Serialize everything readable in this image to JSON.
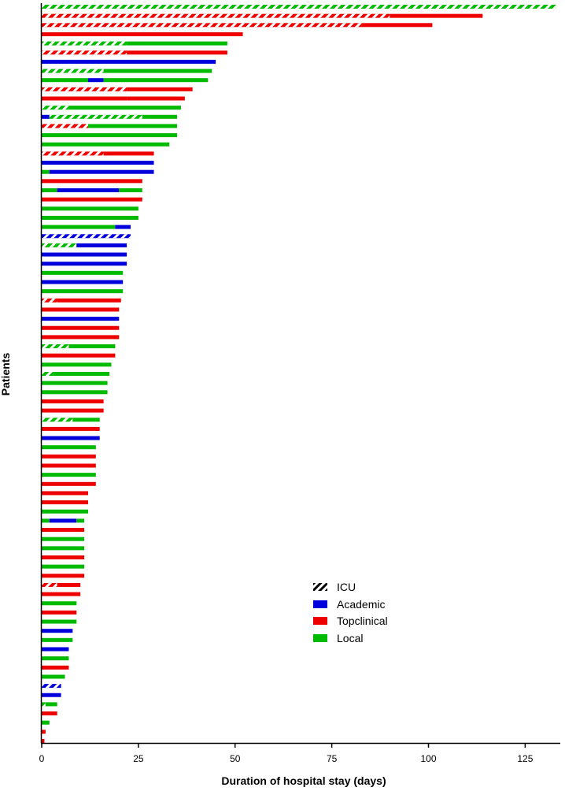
{
  "chart_data": {
    "type": "bar",
    "orientation": "horizontal",
    "xlabel": "Duration of hospital stay (days)",
    "ylabel": "Patients",
    "xlim": [
      0,
      135
    ],
    "xticks": [
      "0",
      "25",
      "50",
      "75",
      "100",
      "125"
    ],
    "legend": {
      "placement": "bottom-right",
      "entries": [
        {
          "key": "icu",
          "label": "ICU"
        },
        {
          "key": "academic",
          "label": "Academic"
        },
        {
          "key": "topclinical",
          "label": "Topclinical"
        },
        {
          "key": "local",
          "label": "Local"
        }
      ]
    },
    "colors": {
      "academic": "#0000dd",
      "topclinical": "#ee0000",
      "local": "#00bb00",
      "axis": "#000000"
    },
    "patients": [
      [
        [
          "L",
          0,
          133,
          1
        ]
      ],
      [
        [
          "T",
          0,
          90,
          1
        ],
        [
          "T",
          90,
          114,
          0
        ]
      ],
      [
        [
          "T",
          0,
          83,
          1
        ],
        [
          "T",
          83,
          101,
          0
        ]
      ],
      [
        [
          "T",
          0,
          52,
          0
        ]
      ],
      [
        [
          "L",
          0,
          22,
          1
        ],
        [
          "L",
          22,
          48,
          0
        ]
      ],
      [
        [
          "T",
          0,
          22,
          1
        ],
        [
          "T",
          22,
          48,
          0
        ]
      ],
      [
        [
          "A",
          0,
          45,
          0
        ]
      ],
      [
        [
          "L",
          0,
          16,
          1
        ],
        [
          "L",
          16,
          44,
          0
        ]
      ],
      [
        [
          "L",
          0,
          12,
          0
        ],
        [
          "A",
          12,
          16,
          0
        ],
        [
          "L",
          16,
          43,
          0
        ]
      ],
      [
        [
          "T",
          0,
          22,
          1
        ],
        [
          "T",
          22,
          39,
          0
        ]
      ],
      [
        [
          "T",
          0,
          22,
          0
        ],
        [
          "T",
          22,
          37,
          0
        ]
      ],
      [
        [
          "L",
          0,
          7,
          1
        ],
        [
          "L",
          7,
          36,
          0
        ]
      ],
      [
        [
          "A",
          0,
          2,
          0
        ],
        [
          "L",
          2,
          26,
          1
        ],
        [
          "L",
          26,
          35,
          0
        ]
      ],
      [
        [
          "T",
          0,
          12,
          1
        ],
        [
          "L",
          12,
          35,
          0
        ]
      ],
      [
        [
          "L",
          0,
          35,
          0
        ]
      ],
      [
        [
          "L",
          0,
          33,
          0
        ]
      ],
      [
        [
          "T",
          0,
          16,
          1
        ],
        [
          "T",
          16,
          29,
          0
        ]
      ],
      [
        [
          "A",
          0,
          29,
          0
        ]
      ],
      [
        [
          "L",
          0,
          2,
          0
        ],
        [
          "A",
          2,
          29,
          0
        ]
      ],
      [
        [
          "T",
          0,
          26,
          0
        ]
      ],
      [
        [
          "L",
          0,
          4,
          0
        ],
        [
          "A",
          4,
          20,
          0
        ],
        [
          "L",
          20,
          26,
          0
        ]
      ],
      [
        [
          "T",
          0,
          26,
          0
        ]
      ],
      [
        [
          "L",
          0,
          25,
          0
        ]
      ],
      [
        [
          "L",
          0,
          25,
          0
        ]
      ],
      [
        [
          "L",
          0,
          19,
          0
        ],
        [
          "A",
          19,
          23,
          0
        ]
      ],
      [
        [
          "A",
          0,
          23,
          1
        ]
      ],
      [
        [
          "L",
          0,
          9,
          1
        ],
        [
          "A",
          9,
          22,
          0
        ]
      ],
      [
        [
          "A",
          0,
          22,
          0
        ]
      ],
      [
        [
          "A",
          0,
          22,
          0
        ]
      ],
      [
        [
          "L",
          0,
          21,
          0
        ]
      ],
      [
        [
          "A",
          0,
          21,
          0
        ]
      ],
      [
        [
          "L",
          0,
          21,
          0
        ]
      ],
      [
        [
          "T",
          0,
          4,
          1
        ],
        [
          "T",
          4,
          20.5,
          0
        ]
      ],
      [
        [
          "T",
          0,
          20,
          0
        ]
      ],
      [
        [
          "A",
          0,
          20,
          0
        ]
      ],
      [
        [
          "T",
          0,
          20,
          0
        ]
      ],
      [
        [
          "T",
          0,
          20,
          0
        ]
      ],
      [
        [
          "L",
          0,
          7,
          1
        ],
        [
          "L",
          7,
          19,
          0
        ]
      ],
      [
        [
          "T",
          0,
          19,
          0
        ]
      ],
      [
        [
          "L",
          0,
          18,
          0
        ]
      ],
      [
        [
          "L",
          0,
          3,
          1
        ],
        [
          "L",
          3,
          17.5,
          0
        ]
      ],
      [
        [
          "L",
          0,
          17,
          0
        ]
      ],
      [
        [
          "L",
          0,
          17,
          0
        ]
      ],
      [
        [
          "T",
          0,
          16,
          0
        ]
      ],
      [
        [
          "T",
          0,
          16,
          0
        ]
      ],
      [
        [
          "L",
          0,
          8,
          1
        ],
        [
          "L",
          8,
          15,
          0
        ]
      ],
      [
        [
          "T",
          0,
          15,
          0
        ]
      ],
      [
        [
          "A",
          0,
          15,
          0
        ]
      ],
      [
        [
          "L",
          0,
          14,
          0
        ]
      ],
      [
        [
          "T",
          0,
          14,
          0
        ]
      ],
      [
        [
          "T",
          0,
          14,
          0
        ]
      ],
      [
        [
          "L",
          0,
          14,
          0
        ]
      ],
      [
        [
          "T",
          0,
          14,
          0
        ]
      ],
      [
        [
          "T",
          0,
          12,
          0
        ]
      ],
      [
        [
          "T",
          0,
          12,
          0
        ]
      ],
      [
        [
          "L",
          0,
          12,
          0
        ]
      ],
      [
        [
          "L",
          0,
          2,
          0
        ],
        [
          "A",
          2,
          9,
          0
        ],
        [
          "L",
          9,
          11,
          0
        ]
      ],
      [
        [
          "T",
          0,
          11,
          0
        ]
      ],
      [
        [
          "L",
          0,
          11,
          0
        ]
      ],
      [
        [
          "L",
          0,
          11,
          0
        ]
      ],
      [
        [
          "T",
          0,
          11,
          0
        ]
      ],
      [
        [
          "L",
          0,
          11,
          0
        ]
      ],
      [
        [
          "T",
          0,
          11,
          0
        ]
      ],
      [
        [
          "T",
          0,
          4,
          1
        ],
        [
          "T",
          4,
          10,
          0
        ]
      ],
      [
        [
          "T",
          0,
          10,
          0
        ]
      ],
      [
        [
          "L",
          0,
          9,
          0
        ]
      ],
      [
        [
          "T",
          0,
          9,
          0
        ]
      ],
      [
        [
          "L",
          0,
          9,
          0
        ]
      ],
      [
        [
          "A",
          0,
          8,
          0
        ]
      ],
      [
        [
          "L",
          0,
          8,
          0
        ]
      ],
      [
        [
          "A",
          0,
          7,
          0
        ]
      ],
      [
        [
          "L",
          0,
          7,
          0
        ]
      ],
      [
        [
          "T",
          0,
          7,
          0
        ]
      ],
      [
        [
          "L",
          0,
          6,
          0
        ]
      ],
      [
        [
          "A",
          0,
          5,
          1
        ]
      ],
      [
        [
          "A",
          0,
          5,
          0
        ]
      ],
      [
        [
          "L",
          0,
          1,
          1
        ],
        [
          "L",
          1,
          4,
          0
        ]
      ],
      [
        [
          "T",
          0,
          4,
          0
        ]
      ],
      [
        [
          "L",
          0,
          2,
          0
        ]
      ],
      [
        [
          "T",
          0,
          1,
          0
        ]
      ],
      [
        [
          "T",
          0,
          0.7,
          0
        ]
      ]
    ]
  }
}
